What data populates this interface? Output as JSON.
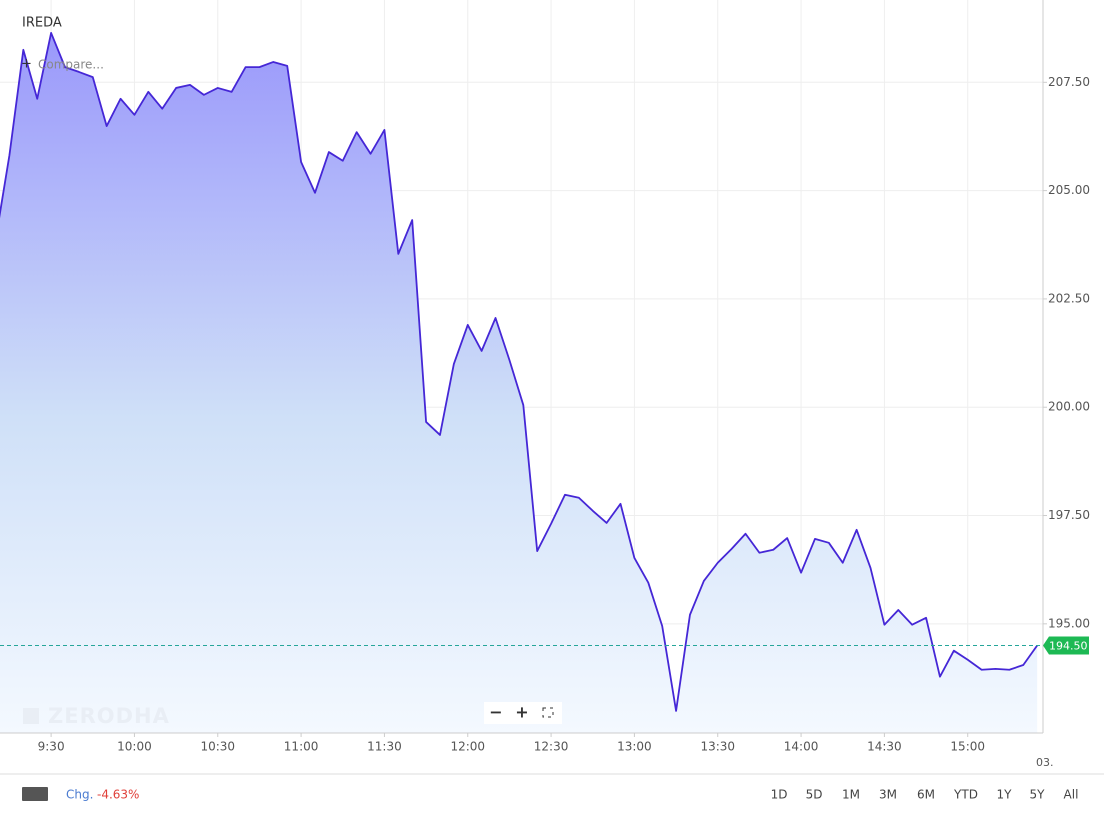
{
  "chart_data": {
    "type": "area",
    "title": "IREDA",
    "compare": "Compare...",
    "watermark": "ZERODHA",
    "x": [
      550,
      555,
      560,
      565,
      570,
      575,
      580,
      585,
      590,
      595,
      600,
      605,
      610,
      615,
      620,
      625,
      630,
      635,
      640,
      645,
      650,
      655,
      660,
      665,
      670,
      675,
      680,
      685,
      690,
      695,
      700,
      705,
      710,
      715,
      720,
      725,
      730,
      735,
      740,
      745,
      750,
      755,
      760,
      765,
      770,
      775,
      780,
      785,
      790,
      795,
      800,
      805,
      810,
      815,
      820,
      825,
      830,
      835,
      840,
      845,
      850,
      855,
      860,
      865,
      870,
      875,
      880,
      885,
      890,
      895,
      900,
      905,
      910,
      915,
      920,
      925
    ],
    "values": [
      203.86,
      205.82,
      208.25,
      207.12,
      208.64,
      207.85,
      207.74,
      207.62,
      206.49,
      207.12,
      206.75,
      207.28,
      206.89,
      207.37,
      207.44,
      207.21,
      207.37,
      207.28,
      207.85,
      207.85,
      207.97,
      207.88,
      205.66,
      204.95,
      205.89,
      205.69,
      206.35,
      205.85,
      206.4,
      203.54,
      204.32,
      199.66,
      199.36,
      201.0,
      201.9,
      201.3,
      202.06,
      201.09,
      200.05,
      196.68,
      197.31,
      197.98,
      197.91,
      197.61,
      197.33,
      197.77,
      196.52,
      195.95,
      194.95,
      192.99,
      195.21,
      195.99,
      196.41,
      196.73,
      197.08,
      196.64,
      196.71,
      196.98,
      196.18,
      196.96,
      196.87,
      196.41,
      197.17,
      196.29,
      194.98,
      195.32,
      194.98,
      195.14,
      193.78,
      194.38,
      194.17,
      193.94,
      193.96,
      193.94,
      194.05,
      194.5
    ],
    "color": "#4527d6",
    "xlim": [
      551.6,
      927.1
    ],
    "xticks": [
      {
        "value": 570,
        "label": "9:30"
      },
      {
        "value": 600,
        "label": "10:00"
      },
      {
        "value": 630,
        "label": "10:30"
      },
      {
        "value": 660,
        "label": "11:00"
      },
      {
        "value": 690,
        "label": "11:30"
      },
      {
        "value": 720,
        "label": "12:00"
      },
      {
        "value": 750,
        "label": "12:30"
      },
      {
        "value": 780,
        "label": "13:00"
      },
      {
        "value": 810,
        "label": "13:30"
      },
      {
        "value": 840,
        "label": "14:00"
      },
      {
        "value": 870,
        "label": "14:30"
      },
      {
        "value": 900,
        "label": "15:00"
      }
    ],
    "x_edge_label": "03.",
    "ylim": [
      192.48,
      209.4
    ],
    "yticks": [
      {
        "value": 195,
        "label": "195.00"
      },
      {
        "value": 197.5,
        "label": "197.50"
      },
      {
        "value": 200,
        "label": "200.00"
      },
      {
        "value": 202.5,
        "label": "202.50"
      },
      {
        "value": 205,
        "label": "205.00"
      },
      {
        "value": 207.5,
        "label": "207.50"
      }
    ],
    "reference_line": {
      "value": 194.5,
      "label": "194.50"
    },
    "grid": true
  },
  "toolbar": {
    "zoom_out": "−",
    "zoom_in": "+",
    "chg_label": "Chg.",
    "chg_value": "-4.63%",
    "periods": [
      "1D",
      "5D",
      "1M",
      "3M",
      "6M",
      "YTD",
      "1Y",
      "5Y",
      "All"
    ]
  }
}
